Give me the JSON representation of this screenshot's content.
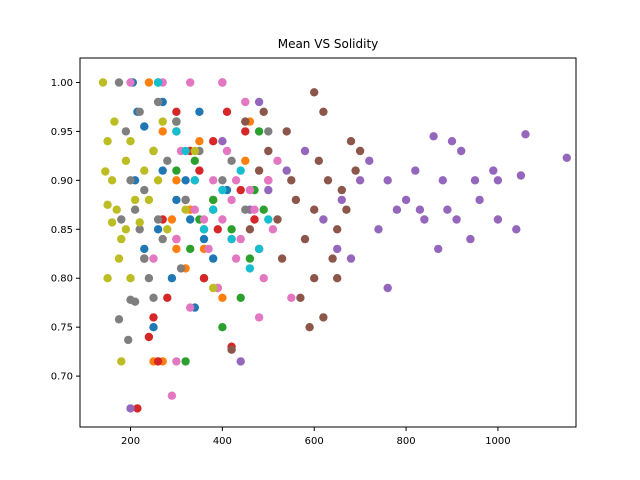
{
  "chart_data": {
    "type": "scatter",
    "title": "Mean VS Solidity",
    "xlabel": "",
    "ylabel": "",
    "xlim": [
      90,
      1170
    ],
    "ylim": [
      0.648,
      1.025
    ],
    "xticks": [
      200,
      400,
      600,
      800,
      1000
    ],
    "yticks": [
      0.7,
      0.75,
      0.8,
      0.85,
      0.9,
      0.95,
      1.0
    ],
    "xtick_labels": [
      "200",
      "400",
      "600",
      "800",
      "1000"
    ],
    "ytick_labels": [
      "0.70",
      "0.75",
      "0.80",
      "0.85",
      "0.90",
      "0.95",
      "1.00"
    ],
    "grid": false,
    "legend": "none",
    "series": [
      {
        "color": "#1f77b4",
        "points": [
          [
            205,
            1.0
          ],
          [
            215,
            0.97
          ],
          [
            230,
            0.955
          ],
          [
            250,
            0.93
          ],
          [
            270,
            0.91
          ],
          [
            300,
            0.88
          ],
          [
            330,
            0.86
          ],
          [
            360,
            0.84
          ],
          [
            300,
            0.96
          ],
          [
            250,
            0.75
          ],
          [
            230,
            0.83
          ],
          [
            320,
            0.9
          ],
          [
            410,
            0.89
          ],
          [
            260,
            0.85
          ],
          [
            290,
            0.8
          ],
          [
            340,
            0.77
          ],
          [
            350,
            0.97
          ],
          [
            270,
            0.98
          ],
          [
            210,
            0.9
          ],
          [
            380,
            0.82
          ]
        ]
      },
      {
        "color": "#ff7f0e",
        "points": [
          [
            240,
            1.0
          ],
          [
            270,
            0.95
          ],
          [
            300,
            0.9
          ],
          [
            330,
            0.87
          ],
          [
            360,
            0.83
          ],
          [
            390,
            0.79
          ],
          [
            250,
            0.715
          ],
          [
            270,
            0.715
          ],
          [
            420,
            0.84
          ],
          [
            450,
            0.92
          ],
          [
            400,
            0.78
          ],
          [
            320,
            0.81
          ],
          [
            350,
            0.94
          ],
          [
            380,
            0.88
          ],
          [
            290,
            0.86
          ],
          [
            460,
            0.96
          ],
          [
            300,
            0.83
          ]
        ]
      },
      {
        "color": "#2ca02c",
        "points": [
          [
            260,
            1.0
          ],
          [
            300,
            0.96
          ],
          [
            340,
            0.92
          ],
          [
            380,
            0.88
          ],
          [
            420,
            0.85
          ],
          [
            460,
            0.82
          ],
          [
            400,
            0.75
          ],
          [
            320,
            0.715
          ],
          [
            440,
            0.78
          ],
          [
            490,
            0.87
          ],
          [
            350,
            0.86
          ],
          [
            480,
            0.95
          ],
          [
            300,
            0.91
          ],
          [
            360,
            0.8
          ],
          [
            470,
            0.89
          ],
          [
            330,
            0.83
          ]
        ]
      },
      {
        "color": "#d62728",
        "points": [
          [
            215,
            0.667
          ],
          [
            240,
            0.74
          ],
          [
            250,
            0.76
          ],
          [
            260,
            0.715
          ],
          [
            280,
            0.78
          ],
          [
            300,
            0.84
          ],
          [
            320,
            0.88
          ],
          [
            350,
            0.91
          ],
          [
            380,
            0.94
          ],
          [
            410,
            0.97
          ],
          [
            440,
            0.89
          ],
          [
            470,
            0.86
          ],
          [
            420,
            0.73
          ],
          [
            230,
            0.82
          ],
          [
            270,
            0.86
          ],
          [
            330,
            0.93
          ],
          [
            390,
            0.85
          ],
          [
            450,
            0.95
          ],
          [
            500,
            0.9
          ],
          [
            360,
            0.8
          ],
          [
            300,
            0.97
          ],
          [
            480,
            0.83
          ]
        ]
      },
      {
        "color": "#9467bd",
        "points": [
          [
            720,
            0.92
          ],
          [
            760,
            0.9
          ],
          [
            800,
            0.88
          ],
          [
            840,
            0.86
          ],
          [
            880,
            0.9
          ],
          [
            920,
            0.93
          ],
          [
            960,
            0.88
          ],
          [
            1000,
            0.86
          ],
          [
            1040,
            0.85
          ],
          [
            1060,
            0.947
          ],
          [
            1150,
            0.923
          ],
          [
            870,
            0.83
          ],
          [
            900,
            0.94
          ],
          [
            820,
            0.91
          ],
          [
            780,
            0.87
          ],
          [
            740,
            0.85
          ],
          [
            700,
            0.9
          ],
          [
            660,
            0.88
          ],
          [
            620,
            0.86
          ],
          [
            580,
            0.93
          ],
          [
            540,
            0.91
          ],
          [
            500,
            0.89
          ],
          [
            460,
            0.87
          ],
          [
            440,
            0.715
          ],
          [
            860,
            0.945
          ],
          [
            950,
            0.9
          ],
          [
            990,
            0.91
          ],
          [
            830,
            0.87
          ],
          [
            910,
            0.86
          ],
          [
            650,
            0.83
          ],
          [
            680,
            0.82
          ],
          [
            760,
            0.79
          ],
          [
            200,
            0.667
          ],
          [
            300,
            0.95
          ],
          [
            400,
            0.94
          ],
          [
            480,
            0.98
          ],
          [
            1000,
            0.9
          ],
          [
            1050,
            0.905
          ],
          [
            940,
            0.84
          ],
          [
            890,
            0.87
          ]
        ]
      },
      {
        "color": "#8c564b",
        "points": [
          [
            400,
            1.0
          ],
          [
            450,
            0.96
          ],
          [
            500,
            0.93
          ],
          [
            550,
            0.9
          ],
          [
            600,
            0.87
          ],
          [
            650,
            0.85
          ],
          [
            680,
            0.94
          ],
          [
            620,
            0.97
          ],
          [
            640,
            0.82
          ],
          [
            570,
            0.78
          ],
          [
            600,
            0.8
          ],
          [
            660,
            0.89
          ],
          [
            590,
            0.75
          ],
          [
            420,
            0.727
          ],
          [
            520,
            0.86
          ],
          [
            480,
            0.91
          ],
          [
            560,
            0.88
          ],
          [
            610,
            0.92
          ],
          [
            540,
            0.95
          ],
          [
            580,
            0.84
          ],
          [
            630,
            0.9
          ],
          [
            670,
            0.87
          ],
          [
            700,
            0.93
          ],
          [
            650,
            0.8
          ],
          [
            600,
            0.99
          ],
          [
            460,
            0.85
          ],
          [
            530,
            0.82
          ],
          [
            490,
            0.97
          ],
          [
            620,
            0.76
          ],
          [
            690,
            0.91
          ]
        ]
      },
      {
        "color": "#e377c2",
        "points": [
          [
            200,
            1.0
          ],
          [
            270,
            1.0
          ],
          [
            330,
            1.0
          ],
          [
            400,
            1.0
          ],
          [
            450,
            0.98
          ],
          [
            500,
            0.9
          ],
          [
            420,
            0.88
          ],
          [
            360,
            0.86
          ],
          [
            300,
            0.84
          ],
          [
            250,
            0.82
          ],
          [
            290,
            0.68
          ],
          [
            300,
            0.715
          ],
          [
            330,
            0.77
          ],
          [
            390,
            0.79
          ],
          [
            430,
            0.82
          ],
          [
            470,
            0.87
          ],
          [
            520,
            0.92
          ],
          [
            550,
            0.78
          ],
          [
            480,
            0.76
          ],
          [
            440,
            0.84
          ],
          [
            410,
            0.93
          ],
          [
            380,
            0.9
          ],
          [
            340,
            0.87
          ],
          [
            310,
            0.93
          ],
          [
            460,
            0.89
          ],
          [
            510,
            0.85
          ],
          [
            490,
            0.8
          ],
          [
            400,
            0.86
          ],
          [
            430,
            0.9
          ],
          [
            370,
            0.83
          ]
        ]
      },
      {
        "color": "#7f7f7f",
        "points": [
          [
            175,
            1.0
          ],
          [
            190,
            0.95
          ],
          [
            200,
            0.9
          ],
          [
            210,
            0.87
          ],
          [
            220,
            0.85
          ],
          [
            230,
            0.82
          ],
          [
            240,
            0.8
          ],
          [
            250,
            0.78
          ],
          [
            175,
            0.758
          ],
          [
            195,
            0.737
          ],
          [
            200,
            0.778
          ],
          [
            210,
            0.776
          ],
          [
            260,
            0.98
          ],
          [
            300,
            0.96
          ],
          [
            350,
            0.93
          ],
          [
            400,
            0.9
          ],
          [
            450,
            0.87
          ],
          [
            500,
            0.95
          ],
          [
            280,
            0.92
          ],
          [
            320,
            0.88
          ],
          [
            360,
            0.85
          ],
          [
            230,
            0.89
          ],
          [
            180,
            0.86
          ],
          [
            270,
            0.84
          ],
          [
            310,
            0.81
          ],
          [
            220,
            0.97
          ],
          [
            340,
            0.9
          ],
          [
            380,
            0.87
          ],
          [
            420,
            0.92
          ],
          [
            260,
            0.86
          ]
        ]
      },
      {
        "color": "#bcbd22",
        "points": [
          [
            140,
            1.0
          ],
          [
            150,
            0.94
          ],
          [
            160,
            0.9
          ],
          [
            170,
            0.87
          ],
          [
            180,
            0.84
          ],
          [
            150,
            0.8
          ],
          [
            175,
            0.82
          ],
          [
            190,
            0.85
          ],
          [
            210,
            0.88
          ],
          [
            230,
            0.91
          ],
          [
            250,
            0.93
          ],
          [
            270,
            0.96
          ],
          [
            180,
            0.715
          ],
          [
            160,
            0.857
          ],
          [
            200,
            0.8
          ],
          [
            220,
            0.857
          ],
          [
            240,
            0.88
          ],
          [
            145,
            0.909
          ],
          [
            165,
            0.96
          ],
          [
            260,
            0.9
          ],
          [
            280,
            0.85
          ],
          [
            190,
            0.92
          ],
          [
            300,
            0.95
          ],
          [
            320,
            0.87
          ],
          [
            340,
            0.93
          ],
          [
            380,
            0.79
          ],
          [
            150,
            0.875
          ],
          [
            200,
            0.94
          ]
        ]
      },
      {
        "color": "#17becf",
        "points": [
          [
            260,
            1.0
          ],
          [
            300,
            0.95
          ],
          [
            340,
            0.9
          ],
          [
            380,
            0.87
          ],
          [
            420,
            0.84
          ],
          [
            460,
            0.81
          ],
          [
            500,
            0.86
          ],
          [
            480,
            0.83
          ],
          [
            440,
            0.91
          ],
          [
            400,
            0.89
          ],
          [
            360,
            0.85
          ],
          [
            320,
            0.93
          ]
        ]
      }
    ]
  }
}
